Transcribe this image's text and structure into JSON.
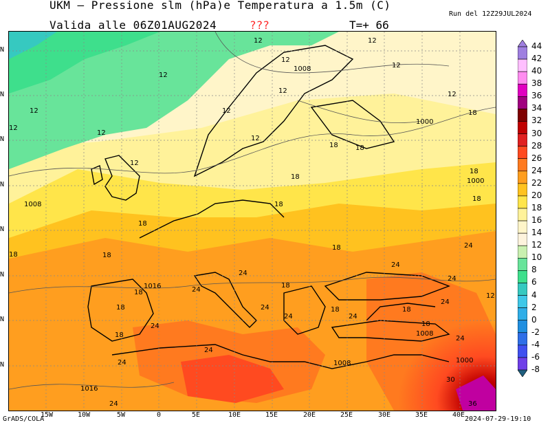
{
  "header": {
    "title": "UKM – Pressione slm (hPa)e Temperatura a 1.5m (C)",
    "valid": "Valida alle 06Z01AUG2024",
    "flag": "???",
    "step": "T=+ 66",
    "run": "Run del 12Z29JUL2024"
  },
  "footer": {
    "credit": "GrADS/COLA",
    "stamp": "2024-07-29-19:10"
  },
  "axis": {
    "x_ticks": [
      "15W",
      "10W",
      "5W",
      "0",
      "5E",
      "10E",
      "15E",
      "20E",
      "25E",
      "30E",
      "35E",
      "40E"
    ],
    "y_ticks": [
      "N",
      "N",
      "N",
      "N",
      "N",
      "N",
      "N",
      "N"
    ]
  },
  "colorbar": {
    "labels": [
      "44",
      "42",
      "40",
      "38",
      "36",
      "34",
      "32",
      "30",
      "28",
      "26",
      "24",
      "22",
      "20",
      "18",
      "16",
      "14",
      "12",
      "10",
      "8",
      "6",
      "4",
      "2",
      "0",
      "-2",
      "-4",
      "-6",
      "-8"
    ],
    "colors": [
      "#9f7fe0",
      "#ffbfff",
      "#ff8cf0",
      "#e000c0",
      "#a0007f",
      "#7f0000",
      "#c00000",
      "#e02020",
      "#ff4a20",
      "#ff7a1f",
      "#ff9e1f",
      "#ffc21f",
      "#ffe54a",
      "#fff29a",
      "#fff5c9",
      "#fdf3dd",
      "#c9f0b0",
      "#68e49a",
      "#3edf8c",
      "#36c9c0",
      "#3fc8e8",
      "#2faee8",
      "#208fe0",
      "#2f6fe8",
      "#4050f0",
      "#6f3fe8",
      "#8d30e0"
    ]
  },
  "map_labels": {
    "temperature": [
      "12",
      "12",
      "12",
      "12",
      "12",
      "12",
      "12",
      "12",
      "12",
      "12",
      "12",
      "12",
      "12",
      "18",
      "18",
      "18",
      "18",
      "18",
      "18",
      "18",
      "18",
      "18",
      "18",
      "18",
      "18",
      "18",
      "18",
      "18",
      "18",
      "18",
      "18",
      "24",
      "24",
      "24",
      "24",
      "24",
      "24",
      "24",
      "24",
      "24",
      "24",
      "24",
      "24",
      "24",
      "24",
      "30",
      "36",
      "12"
    ],
    "pressure": [
      "1008",
      "1008",
      "1000",
      "1000",
      "1016",
      "1016",
      "1008",
      "1008",
      "1000"
    ]
  }
}
